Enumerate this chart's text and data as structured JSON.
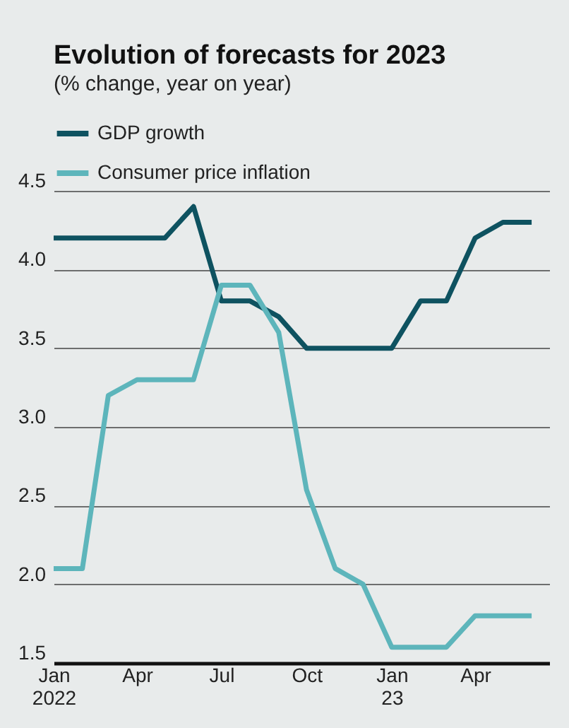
{
  "chart_data": {
    "type": "line",
    "title": "Evolution of forecasts for 2023",
    "subtitle": "(% change, year on year)",
    "x": [
      "2022-01",
      "2022-02",
      "2022-03",
      "2022-04",
      "2022-05",
      "2022-06",
      "2022-07",
      "2022-08",
      "2022-09",
      "2022-10",
      "2022-11",
      "2022-12",
      "2023-01",
      "2023-02",
      "2023-03",
      "2023-04",
      "2023-05",
      "2023-06"
    ],
    "series": [
      {
        "name": "GDP growth",
        "color": "#0e5260",
        "values": [
          4.2,
          4.2,
          4.2,
          4.2,
          4.2,
          4.4,
          3.8,
          3.8,
          3.7,
          3.5,
          3.5,
          3.5,
          3.5,
          3.8,
          3.8,
          4.2,
          4.3,
          4.3
        ]
      },
      {
        "name": "Consumer price inflation",
        "color": "#5db5bb",
        "values": [
          2.1,
          2.1,
          3.2,
          3.3,
          3.3,
          3.3,
          3.9,
          3.9,
          3.6,
          2.6,
          2.1,
          2.0,
          1.6,
          1.6,
          1.6,
          1.8,
          1.8,
          1.8
        ]
      }
    ],
    "xlim": [
      "2022-01",
      "2023-06-20"
    ],
    "xticks": [
      {
        "value": "2022-01",
        "label": "Jan 2022"
      },
      {
        "value": "2022-04",
        "label": "Apr"
      },
      {
        "value": "2022-07",
        "label": "Jul"
      },
      {
        "value": "2022-10",
        "label": "Oct"
      },
      {
        "value": "2023-01",
        "label": "Jan 23"
      },
      {
        "value": "2023-04",
        "label": "Apr"
      }
    ],
    "ylim": [
      1.5,
      4.5
    ],
    "yticks": [
      {
        "value": 1.5,
        "label": "1.5"
      },
      {
        "value": 2.0,
        "label": "2.0"
      },
      {
        "value": 2.5,
        "label": "2.5"
      },
      {
        "value": 3.0,
        "label": "3.0"
      },
      {
        "value": 3.5,
        "label": "3.5"
      },
      {
        "value": 4.0,
        "label": "4.0"
      },
      {
        "value": 4.5,
        "label": "4.5"
      }
    ],
    "grid": "y",
    "legend": "top left",
    "marker": "none",
    "line_style": "solid"
  }
}
